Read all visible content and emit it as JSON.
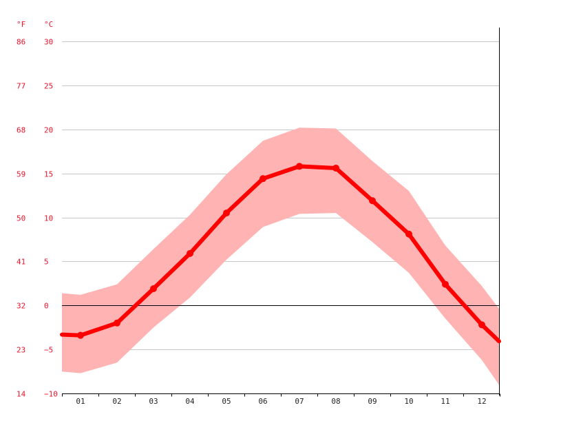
{
  "chart_data": {
    "type": "line",
    "categories": [
      "01",
      "02",
      "03",
      "04",
      "05",
      "06",
      "07",
      "08",
      "09",
      "10",
      "11",
      "12"
    ],
    "unit_labels": {
      "fahrenheit": "°F",
      "celsius": "°C"
    },
    "y_ticks_c": [
      "30",
      "25",
      "20",
      "15",
      "10",
      "5",
      "0",
      "−5",
      "−10"
    ],
    "y_ticks_f": [
      "86",
      "77",
      "68",
      "59",
      "50",
      "41",
      "32",
      "23",
      "14"
    ],
    "ylim": [
      -10,
      30
    ],
    "grid": true,
    "series": [
      {
        "kind": "line",
        "values": [
          -3.4,
          -2.0,
          1.9,
          5.9,
          10.5,
          14.4,
          15.8,
          15.6,
          11.9,
          8.1,
          2.4,
          -2.2
        ]
      },
      {
        "kind": "band",
        "upper": [
          1.2,
          2.4,
          6.4,
          10.3,
          14.9,
          18.7,
          20.2,
          20.1,
          16.4,
          13.0,
          6.8,
          2.2
        ],
        "lower": [
          -7.7,
          -6.5,
          -2.5,
          0.9,
          5.2,
          8.9,
          10.4,
          10.5,
          7.2,
          3.7,
          -1.5,
          -6.2
        ]
      }
    ],
    "colors": {
      "line": "#ff0000",
      "band": "#ffb3b3",
      "grid": "#c8c8c8",
      "zero_line": "#000000",
      "axis_text": "#e8142b",
      "x_text": "#222222"
    }
  }
}
